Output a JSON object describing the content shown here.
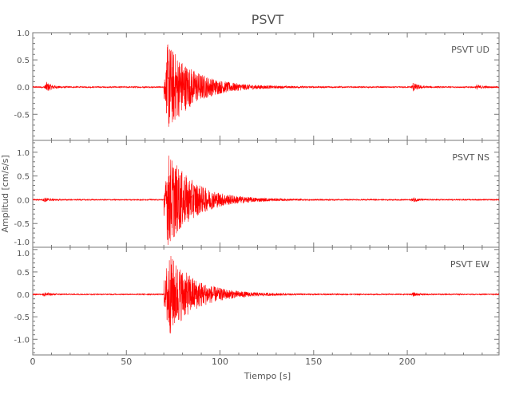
{
  "chart_data": {
    "type": "line",
    "title": "PSVT",
    "xlabel": "Tiempo [s]",
    "ylabel": "Amplitud [cm/s/s]",
    "xlim": [
      0,
      249
    ],
    "xticks": [
      0,
      50,
      100,
      150,
      200
    ],
    "grid": false,
    "line_color": "#ff0000",
    "panels": [
      {
        "label": "PSVT   UD",
        "ylim": [
          -0.98,
          1.0
        ],
        "yticks": [
          1.0,
          0.5,
          0.0,
          -0.5
        ],
        "ytick_labels": [
          "1.0",
          "0.5",
          "0.0",
          "-0.5"
        ],
        "peak_max": 0.95,
        "peak_min": -0.88,
        "events": [
          {
            "t": 7,
            "amp": 0.1
          },
          {
            "t": 71,
            "amp": 0.9
          },
          {
            "t": 203,
            "amp": 0.08
          },
          {
            "t": 237,
            "amp": 0.04
          }
        ]
      },
      {
        "label": "PSVT   NS",
        "ylim": [
          -1.0,
          1.25
        ],
        "yticks": [
          1.0,
          0.5,
          0.0,
          -0.5,
          -1.0
        ],
        "ytick_labels": [
          "1.0",
          "0.5",
          "0.0",
          "-0.5",
          "-1.0"
        ],
        "peak_max": 1.2,
        "peak_min": -0.95,
        "events": [
          {
            "t": 6,
            "amp": 0.05
          },
          {
            "t": 71,
            "amp": 1.1
          },
          {
            "t": 203,
            "amp": 0.05
          }
        ]
      },
      {
        "label": "PSVT   EW",
        "ylim": [
          -1.35,
          1.05
        ],
        "yticks": [
          1.0,
          0.5,
          0.0,
          -0.5,
          -1.0
        ],
        "ytick_labels": [
          "1.0",
          "0.5",
          "0.0",
          "-0.5",
          "-1.0"
        ],
        "peak_max": 1.0,
        "peak_min": -1.25,
        "events": [
          {
            "t": 6,
            "amp": 0.05
          },
          {
            "t": 71,
            "amp": 1.05
          },
          {
            "t": 203,
            "amp": 0.04
          }
        ]
      }
    ]
  }
}
